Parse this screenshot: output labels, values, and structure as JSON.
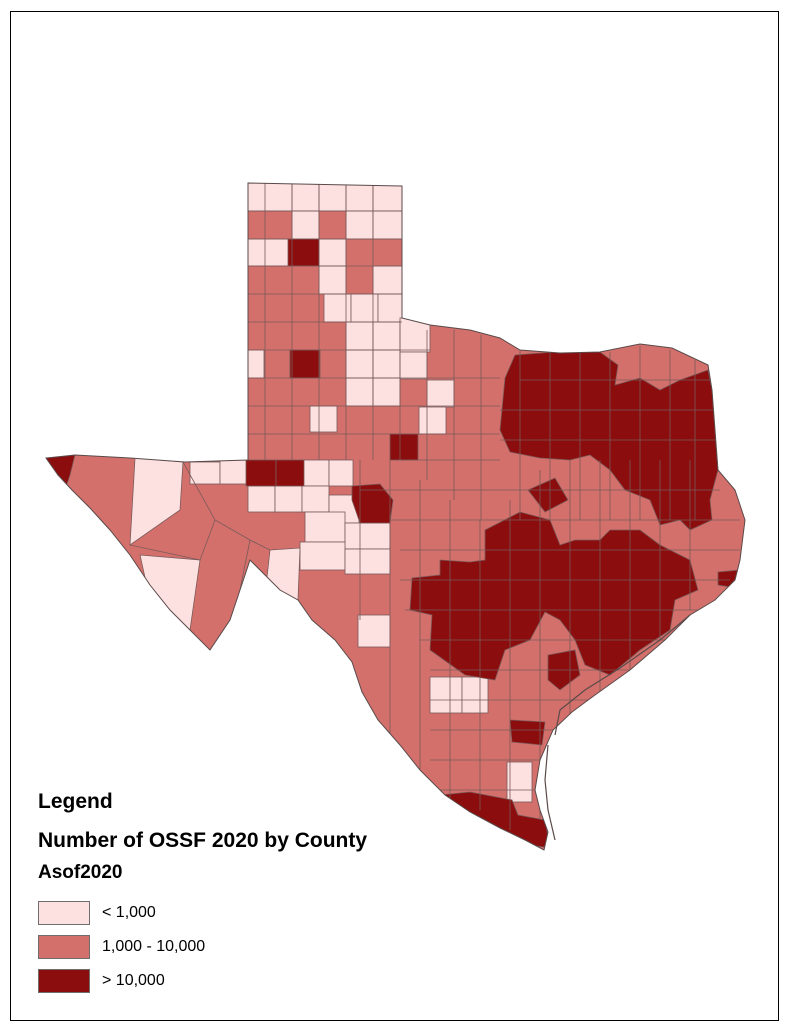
{
  "legend": {
    "title": "Legend",
    "subtitle": "Number of OSSF 2020 by County",
    "layer": "Asof2020",
    "classes": [
      {
        "label": "< 1,000",
        "color": "#fde0e0"
      },
      {
        "label": "1,000 - 10,000",
        "color": "#d4706b"
      },
      {
        "label": "> 10,000",
        "color": "#8b0d0d"
      }
    ]
  },
  "colors": {
    "low": "#fde0e0",
    "medium": "#d4706b",
    "high": "#8b0d0d",
    "county_border": "#7a5a5a"
  }
}
